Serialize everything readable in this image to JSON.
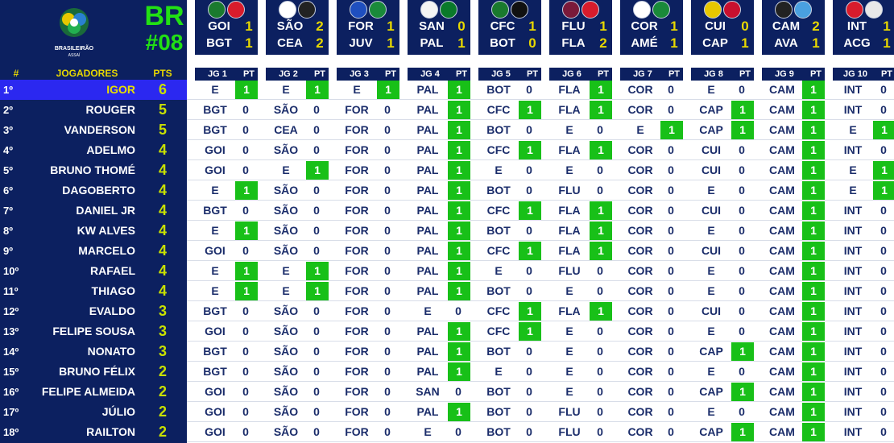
{
  "header": {
    "league_abbr": "BR",
    "round": "#08",
    "logo_text_1": "BRASILEIRÃO",
    "logo_text_2": "ASSAÍ"
  },
  "columns": {
    "pos": "#",
    "players": "JOGADORES",
    "pts": "PTS",
    "pt": "PT"
  },
  "games": [
    {
      "label": "JG 1",
      "home": "GOI",
      "home_score": "1",
      "away": "BGT",
      "away_score": "1",
      "home_color": "#1a7a2e",
      "away_color": "#d81c2c"
    },
    {
      "label": "JG 2",
      "home": "SÃO",
      "home_score": "2",
      "away": "CEA",
      "away_score": "2",
      "home_color": "#ffffff",
      "away_color": "#222222"
    },
    {
      "label": "JG 3",
      "home": "FOR",
      "home_score": "1",
      "away": "JUV",
      "away_score": "1",
      "home_color": "#1f4fbf",
      "away_color": "#1a8a3a"
    },
    {
      "label": "JG 4",
      "home": "SAN",
      "home_score": "0",
      "away": "PAL",
      "away_score": "1",
      "home_color": "#f4f4f4",
      "away_color": "#0a7a2a"
    },
    {
      "label": "JG 5",
      "home": "CFC",
      "home_score": "1",
      "away": "BOT",
      "away_score": "0",
      "home_color": "#1a7a2e",
      "away_color": "#111111"
    },
    {
      "label": "JG 6",
      "home": "FLU",
      "home_score": "1",
      "away": "FLA",
      "away_score": "2",
      "home_color": "#7a1a3a",
      "away_color": "#d81c2c"
    },
    {
      "label": "JG 7",
      "home": "COR",
      "home_score": "1",
      "away": "AMÉ",
      "away_score": "1",
      "home_color": "#ffffff",
      "away_color": "#1a8a3a"
    },
    {
      "label": "JG 8",
      "home": "CUI",
      "home_score": "0",
      "away": "CAP",
      "away_score": "1",
      "home_color": "#e8c800",
      "away_color": "#c8102e"
    },
    {
      "label": "JG 9",
      "home": "CAM",
      "home_score": "2",
      "away": "AVA",
      "away_score": "1",
      "home_color": "#222222",
      "away_color": "#4aa0e0"
    },
    {
      "label": "JG 10",
      "home": "INT",
      "home_score": "1",
      "away": "ACG",
      "away_score": "1",
      "home_color": "#d81c2c",
      "away_color": "#e8e8e8"
    }
  ],
  "players": [
    {
      "pos": "1º",
      "name": "IGOR",
      "pts": "6",
      "highlight": true,
      "picks": [
        [
          "E",
          "1"
        ],
        [
          "E",
          "1"
        ],
        [
          "E",
          "1"
        ],
        [
          "PAL",
          "1"
        ],
        [
          "BOT",
          "0"
        ],
        [
          "FLA",
          "1"
        ],
        [
          "COR",
          "0"
        ],
        [
          "E",
          "0"
        ],
        [
          "CAM",
          "1"
        ],
        [
          "INT",
          "0"
        ]
      ]
    },
    {
      "pos": "2º",
      "name": "ROUGER",
      "pts": "5",
      "picks": [
        [
          "BGT",
          "0"
        ],
        [
          "SÃO",
          "0"
        ],
        [
          "FOR",
          "0"
        ],
        [
          "PAL",
          "1"
        ],
        [
          "CFC",
          "1"
        ],
        [
          "FLA",
          "1"
        ],
        [
          "COR",
          "0"
        ],
        [
          "CAP",
          "1"
        ],
        [
          "CAM",
          "1"
        ],
        [
          "INT",
          "0"
        ]
      ]
    },
    {
      "pos": "3º",
      "name": "VANDERSON",
      "pts": "5",
      "picks": [
        [
          "BGT",
          "0"
        ],
        [
          "CEA",
          "0"
        ],
        [
          "FOR",
          "0"
        ],
        [
          "PAL",
          "1"
        ],
        [
          "BOT",
          "0"
        ],
        [
          "E",
          "0"
        ],
        [
          "E",
          "1"
        ],
        [
          "CAP",
          "1"
        ],
        [
          "CAM",
          "1"
        ],
        [
          "E",
          "1"
        ]
      ]
    },
    {
      "pos": "4º",
      "name": "ADELMO",
      "pts": "4",
      "picks": [
        [
          "GOI",
          "0"
        ],
        [
          "SÃO",
          "0"
        ],
        [
          "FOR",
          "0"
        ],
        [
          "PAL",
          "1"
        ],
        [
          "CFC",
          "1"
        ],
        [
          "FLA",
          "1"
        ],
        [
          "COR",
          "0"
        ],
        [
          "CUI",
          "0"
        ],
        [
          "CAM",
          "1"
        ],
        [
          "INT",
          "0"
        ]
      ]
    },
    {
      "pos": "5º",
      "name": "BRUNO THOMÉ",
      "pts": "4",
      "picks": [
        [
          "GOI",
          "0"
        ],
        [
          "E",
          "1"
        ],
        [
          "FOR",
          "0"
        ],
        [
          "PAL",
          "1"
        ],
        [
          "E",
          "0"
        ],
        [
          "E",
          "0"
        ],
        [
          "COR",
          "0"
        ],
        [
          "CUI",
          "0"
        ],
        [
          "CAM",
          "1"
        ],
        [
          "E",
          "1"
        ]
      ]
    },
    {
      "pos": "6º",
      "name": "DAGOBERTO",
      "pts": "4",
      "picks": [
        [
          "E",
          "1"
        ],
        [
          "SÃO",
          "0"
        ],
        [
          "FOR",
          "0"
        ],
        [
          "PAL",
          "1"
        ],
        [
          "BOT",
          "0"
        ],
        [
          "FLU",
          "0"
        ],
        [
          "COR",
          "0"
        ],
        [
          "E",
          "0"
        ],
        [
          "CAM",
          "1"
        ],
        [
          "E",
          "1"
        ]
      ]
    },
    {
      "pos": "7º",
      "name": "DANIEL JR",
      "pts": "4",
      "picks": [
        [
          "BGT",
          "0"
        ],
        [
          "SÃO",
          "0"
        ],
        [
          "FOR",
          "0"
        ],
        [
          "PAL",
          "1"
        ],
        [
          "CFC",
          "1"
        ],
        [
          "FLA",
          "1"
        ],
        [
          "COR",
          "0"
        ],
        [
          "CUI",
          "0"
        ],
        [
          "CAM",
          "1"
        ],
        [
          "INT",
          "0"
        ]
      ]
    },
    {
      "pos": "8º",
      "name": "KW ALVES",
      "pts": "4",
      "picks": [
        [
          "E",
          "1"
        ],
        [
          "SÃO",
          "0"
        ],
        [
          "FOR",
          "0"
        ],
        [
          "PAL",
          "1"
        ],
        [
          "BOT",
          "0"
        ],
        [
          "FLA",
          "1"
        ],
        [
          "COR",
          "0"
        ],
        [
          "E",
          "0"
        ],
        [
          "CAM",
          "1"
        ],
        [
          "INT",
          "0"
        ]
      ]
    },
    {
      "pos": "9º",
      "name": "MARCELO",
      "pts": "4",
      "picks": [
        [
          "GOI",
          "0"
        ],
        [
          "SÃO",
          "0"
        ],
        [
          "FOR",
          "0"
        ],
        [
          "PAL",
          "1"
        ],
        [
          "CFC",
          "1"
        ],
        [
          "FLA",
          "1"
        ],
        [
          "COR",
          "0"
        ],
        [
          "CUI",
          "0"
        ],
        [
          "CAM",
          "1"
        ],
        [
          "INT",
          "0"
        ]
      ]
    },
    {
      "pos": "10º",
      "name": "RAFAEL",
      "pts": "4",
      "picks": [
        [
          "E",
          "1"
        ],
        [
          "E",
          "1"
        ],
        [
          "FOR",
          "0"
        ],
        [
          "PAL",
          "1"
        ],
        [
          "E",
          "0"
        ],
        [
          "FLU",
          "0"
        ],
        [
          "COR",
          "0"
        ],
        [
          "E",
          "0"
        ],
        [
          "CAM",
          "1"
        ],
        [
          "INT",
          "0"
        ]
      ]
    },
    {
      "pos": "11º",
      "name": "THIAGO",
      "pts": "4",
      "picks": [
        [
          "E",
          "1"
        ],
        [
          "E",
          "1"
        ],
        [
          "FOR",
          "0"
        ],
        [
          "PAL",
          "1"
        ],
        [
          "BOT",
          "0"
        ],
        [
          "E",
          "0"
        ],
        [
          "COR",
          "0"
        ],
        [
          "E",
          "0"
        ],
        [
          "CAM",
          "1"
        ],
        [
          "INT",
          "0"
        ]
      ]
    },
    {
      "pos": "12º",
      "name": "EVALDO",
      "pts": "3",
      "picks": [
        [
          "BGT",
          "0"
        ],
        [
          "SÃO",
          "0"
        ],
        [
          "FOR",
          "0"
        ],
        [
          "E",
          "0"
        ],
        [
          "CFC",
          "1"
        ],
        [
          "FLA",
          "1"
        ],
        [
          "COR",
          "0"
        ],
        [
          "CUI",
          "0"
        ],
        [
          "CAM",
          "1"
        ],
        [
          "INT",
          "0"
        ]
      ]
    },
    {
      "pos": "13º",
      "name": "FELIPE SOUSA",
      "pts": "3",
      "picks": [
        [
          "GOI",
          "0"
        ],
        [
          "SÃO",
          "0"
        ],
        [
          "FOR",
          "0"
        ],
        [
          "PAL",
          "1"
        ],
        [
          "CFC",
          "1"
        ],
        [
          "E",
          "0"
        ],
        [
          "COR",
          "0"
        ],
        [
          "E",
          "0"
        ],
        [
          "CAM",
          "1"
        ],
        [
          "INT",
          "0"
        ]
      ]
    },
    {
      "pos": "14º",
      "name": "NONATO",
      "pts": "3",
      "picks": [
        [
          "BGT",
          "0"
        ],
        [
          "SÃO",
          "0"
        ],
        [
          "FOR",
          "0"
        ],
        [
          "PAL",
          "1"
        ],
        [
          "BOT",
          "0"
        ],
        [
          "E",
          "0"
        ],
        [
          "COR",
          "0"
        ],
        [
          "CAP",
          "1"
        ],
        [
          "CAM",
          "1"
        ],
        [
          "INT",
          "0"
        ]
      ]
    },
    {
      "pos": "15º",
      "name": "BRUNO FÉLIX",
      "pts": "2",
      "picks": [
        [
          "BGT",
          "0"
        ],
        [
          "SÃO",
          "0"
        ],
        [
          "FOR",
          "0"
        ],
        [
          "PAL",
          "1"
        ],
        [
          "E",
          "0"
        ],
        [
          "E",
          "0"
        ],
        [
          "COR",
          "0"
        ],
        [
          "E",
          "0"
        ],
        [
          "CAM",
          "1"
        ],
        [
          "INT",
          "0"
        ]
      ]
    },
    {
      "pos": "16º",
      "name": "FELIPE ALMEIDA",
      "pts": "2",
      "picks": [
        [
          "GOI",
          "0"
        ],
        [
          "SÃO",
          "0"
        ],
        [
          "FOR",
          "0"
        ],
        [
          "SAN",
          "0"
        ],
        [
          "BOT",
          "0"
        ],
        [
          "E",
          "0"
        ],
        [
          "COR",
          "0"
        ],
        [
          "CAP",
          "1"
        ],
        [
          "CAM",
          "1"
        ],
        [
          "INT",
          "0"
        ]
      ]
    },
    {
      "pos": "17º",
      "name": "JÚLIO",
      "pts": "2",
      "picks": [
        [
          "GOI",
          "0"
        ],
        [
          "SÃO",
          "0"
        ],
        [
          "FOR",
          "0"
        ],
        [
          "PAL",
          "1"
        ],
        [
          "BOT",
          "0"
        ],
        [
          "FLU",
          "0"
        ],
        [
          "COR",
          "0"
        ],
        [
          "E",
          "0"
        ],
        [
          "CAM",
          "1"
        ],
        [
          "INT",
          "0"
        ]
      ]
    },
    {
      "pos": "18º",
      "name": "RAILTON",
      "pts": "2",
      "picks": [
        [
          "GOI",
          "0"
        ],
        [
          "SÃO",
          "0"
        ],
        [
          "FOR",
          "0"
        ],
        [
          "E",
          "0"
        ],
        [
          "BOT",
          "0"
        ],
        [
          "FLU",
          "0"
        ],
        [
          "COR",
          "0"
        ],
        [
          "CAP",
          "1"
        ],
        [
          "CAM",
          "1"
        ],
        [
          "INT",
          "0"
        ]
      ]
    }
  ]
}
